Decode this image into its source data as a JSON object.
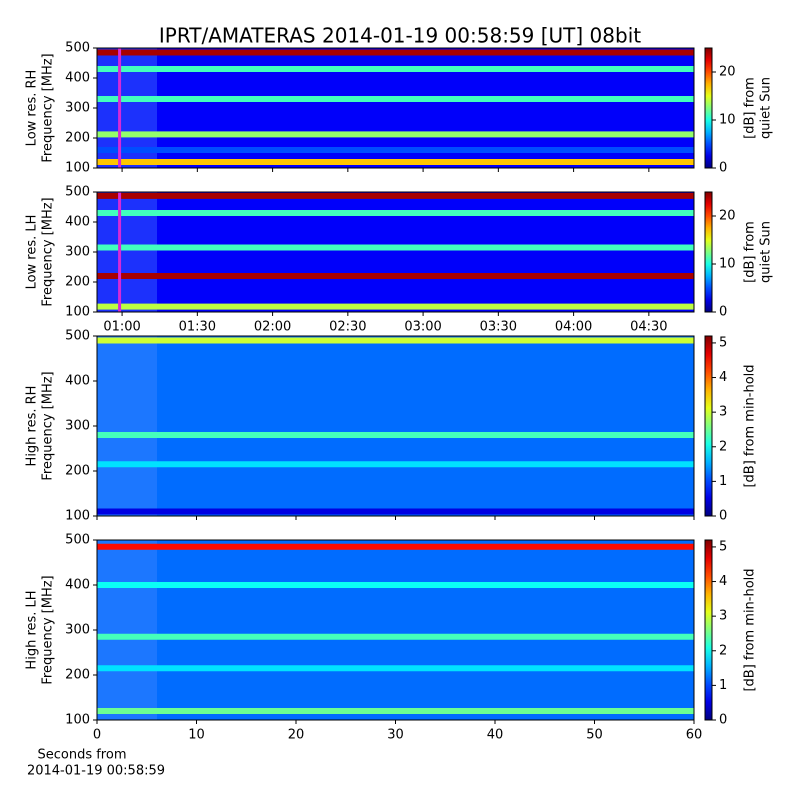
{
  "chart_data": [
    {
      "type": "heatmap",
      "title": "IPRT/AMATERAS 2014-01-19 00:58:59 [UT]   08bit",
      "ylabel": [
        "Low res. RH",
        "Frequency [MHz]"
      ],
      "ylim": [
        100,
        500
      ],
      "yticks": [
        100,
        200,
        300,
        400,
        500
      ],
      "xlim": [
        "00:50",
        "04:48"
      ],
      "xticks": [
        "01:00",
        "01:30",
        "02:00",
        "02:30",
        "03:00",
        "03:30",
        "04:00",
        "04:30"
      ],
      "xticklabels": false,
      "marker": {
        "x": "00:59",
        "color": "#d62ad6"
      },
      "background": 3,
      "bands": [
        {
          "y": 485,
          "level": 24
        },
        {
          "y": 430,
          "level": 11
        },
        {
          "y": 330,
          "level": 11
        },
        {
          "y": 212,
          "level": 13
        },
        {
          "y": 160,
          "level": 5
        },
        {
          "y": 120,
          "level": 17
        }
      ],
      "colorbar": {
        "label": [
          "[dB] from",
          "quiet Sun"
        ],
        "lim": [
          0,
          25
        ],
        "ticks": [
          0,
          10,
          20
        ]
      }
    },
    {
      "type": "heatmap",
      "ylabel": [
        "Low res. LH",
        "Frequency [MHz]"
      ],
      "ylim": [
        100,
        500
      ],
      "yticks": [
        100,
        200,
        300,
        400,
        500
      ],
      "xlim": [
        "00:50",
        "04:48"
      ],
      "xticks": [
        "01:00",
        "01:30",
        "02:00",
        "02:30",
        "03:00",
        "03:30",
        "04:00",
        "04:30"
      ],
      "xticklabels": true,
      "marker": {
        "x": "00:59",
        "color": "#d62ad6"
      },
      "background": 3,
      "bands": [
        {
          "y": 487,
          "level": 24
        },
        {
          "y": 430,
          "level": 11
        },
        {
          "y": 315,
          "level": 11
        },
        {
          "y": 220,
          "level": 24
        },
        {
          "y": 118,
          "level": 14
        }
      ],
      "colorbar": {
        "label": [
          "[dB] from",
          "quiet Sun"
        ],
        "lim": [
          0,
          25
        ],
        "ticks": [
          0,
          10,
          20
        ]
      }
    },
    {
      "type": "heatmap",
      "ylabel": [
        "High res. RH",
        "Frequency [MHz]"
      ],
      "ylim": [
        100,
        500
      ],
      "yticks": [
        100,
        200,
        300,
        400,
        500
      ],
      "xlim": [
        0,
        60
      ],
      "xticks": [
        0,
        10,
        20,
        30,
        40,
        50,
        60
      ],
      "xticklabels": false,
      "background": 1.2,
      "bands": [
        {
          "y": 490,
          "level": 3
        },
        {
          "y": 280,
          "level": 2.3
        },
        {
          "y": 215,
          "level": 1.8
        },
        {
          "y": 110,
          "level": 0.5
        }
      ],
      "colorbar": {
        "label": [
          "[dB] from min-hold"
        ],
        "lim": [
          0,
          5.2
        ],
        "ticks": [
          0,
          1,
          2,
          3,
          4,
          5
        ]
      }
    },
    {
      "type": "heatmap",
      "ylabel": [
        "High res. LH",
        "Frequency [MHz]"
      ],
      "ylim": [
        100,
        500
      ],
      "yticks": [
        100,
        200,
        300,
        400,
        500
      ],
      "xlim": [
        0,
        60
      ],
      "xticks": [
        0,
        10,
        20,
        30,
        40,
        50,
        60
      ],
      "xticklabels": true,
      "xlabel": [
        "Seconds from",
        "2014-01-19 00:58:59"
      ],
      "background": 1.2,
      "bands": [
        {
          "y": 485,
          "level": 4.5
        },
        {
          "y": 400,
          "level": 2
        },
        {
          "y": 285,
          "level": 2.3
        },
        {
          "y": 215,
          "level": 1.8
        },
        {
          "y": 120,
          "level": 2.5
        }
      ],
      "colorbar": {
        "label": [
          "[dB] from min-hold"
        ],
        "lim": [
          0,
          5.2
        ],
        "ticks": [
          0,
          1,
          2,
          3,
          4,
          5
        ]
      }
    }
  ]
}
